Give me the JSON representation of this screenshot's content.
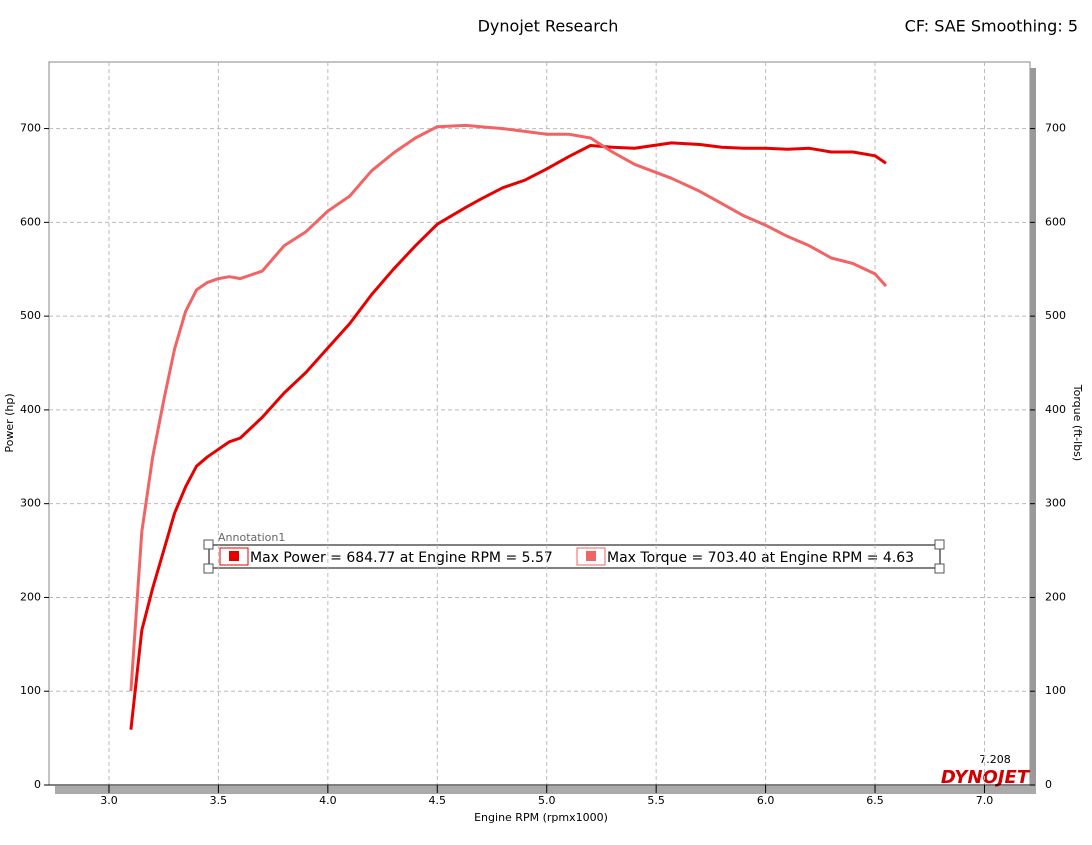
{
  "chart_data": {
    "type": "line",
    "title": "Dynojet Research",
    "subtitle": "CF: SAE Smoothing: 5",
    "x_label": "Engine RPM (rpmx1000)",
    "y_label": "Power (hp)",
    "y2_label": "Torque (ft-lbs)",
    "annotation": "Annotation1",
    "logo": "DYNOJET",
    "x": [
      3.1,
      3.15,
      3.2,
      3.25,
      3.3,
      3.35,
      3.4,
      3.45,
      3.5,
      3.55,
      3.6,
      3.7,
      3.8,
      3.9,
      4.0,
      4.1,
      4.2,
      4.3,
      4.4,
      4.5,
      4.63,
      4.7,
      4.8,
      4.9,
      5.0,
      5.1,
      5.2,
      5.3,
      5.4,
      5.57,
      5.7,
      5.8,
      5.9,
      6.0,
      6.1,
      6.2,
      6.3,
      6.4,
      6.5,
      6.55
    ],
    "series": [
      {
        "name": "Max Power = 684.77 at Engine RPM = 5.57",
        "color": "#e80000",
        "values": [
          59,
          165,
          210,
          250,
          290,
          318,
          340,
          350,
          358,
          366,
          370,
          392,
          418,
          440,
          466,
          492,
          523,
          550,
          575,
          598,
          616,
          625,
          637,
          645,
          657,
          670,
          682,
          680,
          679,
          684.77,
          683,
          680,
          679,
          679,
          678,
          679,
          675,
          675,
          671,
          663
        ]
      },
      {
        "name": "Max Torque = 703.40 at Engine RPM = 4.63",
        "color": "#f26363",
        "axis": "y2",
        "values": [
          100,
          270,
          350,
          410,
          465,
          505,
          528,
          536,
          540,
          542,
          540,
          548,
          575,
          590,
          612,
          628,
          655,
          674,
          690,
          702,
          703.4,
          702,
          700,
          697,
          694,
          694,
          690,
          675,
          662,
          647,
          633,
          620,
          607,
          597,
          585,
          575,
          562,
          556,
          545,
          532
        ]
      }
    ],
    "xlim": [
      2.726,
      7.208
    ],
    "xticks": [
      {
        "value": 3,
        "label": "3.0"
      },
      3.5,
      {
        "value": 4,
        "label": "4.0"
      },
      4.5,
      {
        "value": 5,
        "label": "5.0"
      },
      5.5,
      {
        "value": 6,
        "label": "6.0"
      },
      6.5,
      {
        "value": 7,
        "label": "7.0"
      }
    ],
    "ylim": [
      0,
      771
    ],
    "yticks": [
      0,
      100,
      200,
      300,
      400,
      500,
      600,
      700
    ],
    "y2lim": [
      0,
      771
    ],
    "y2ticks": [
      0,
      100,
      200,
      300,
      400,
      500,
      600,
      700
    ],
    "grid": true
  }
}
